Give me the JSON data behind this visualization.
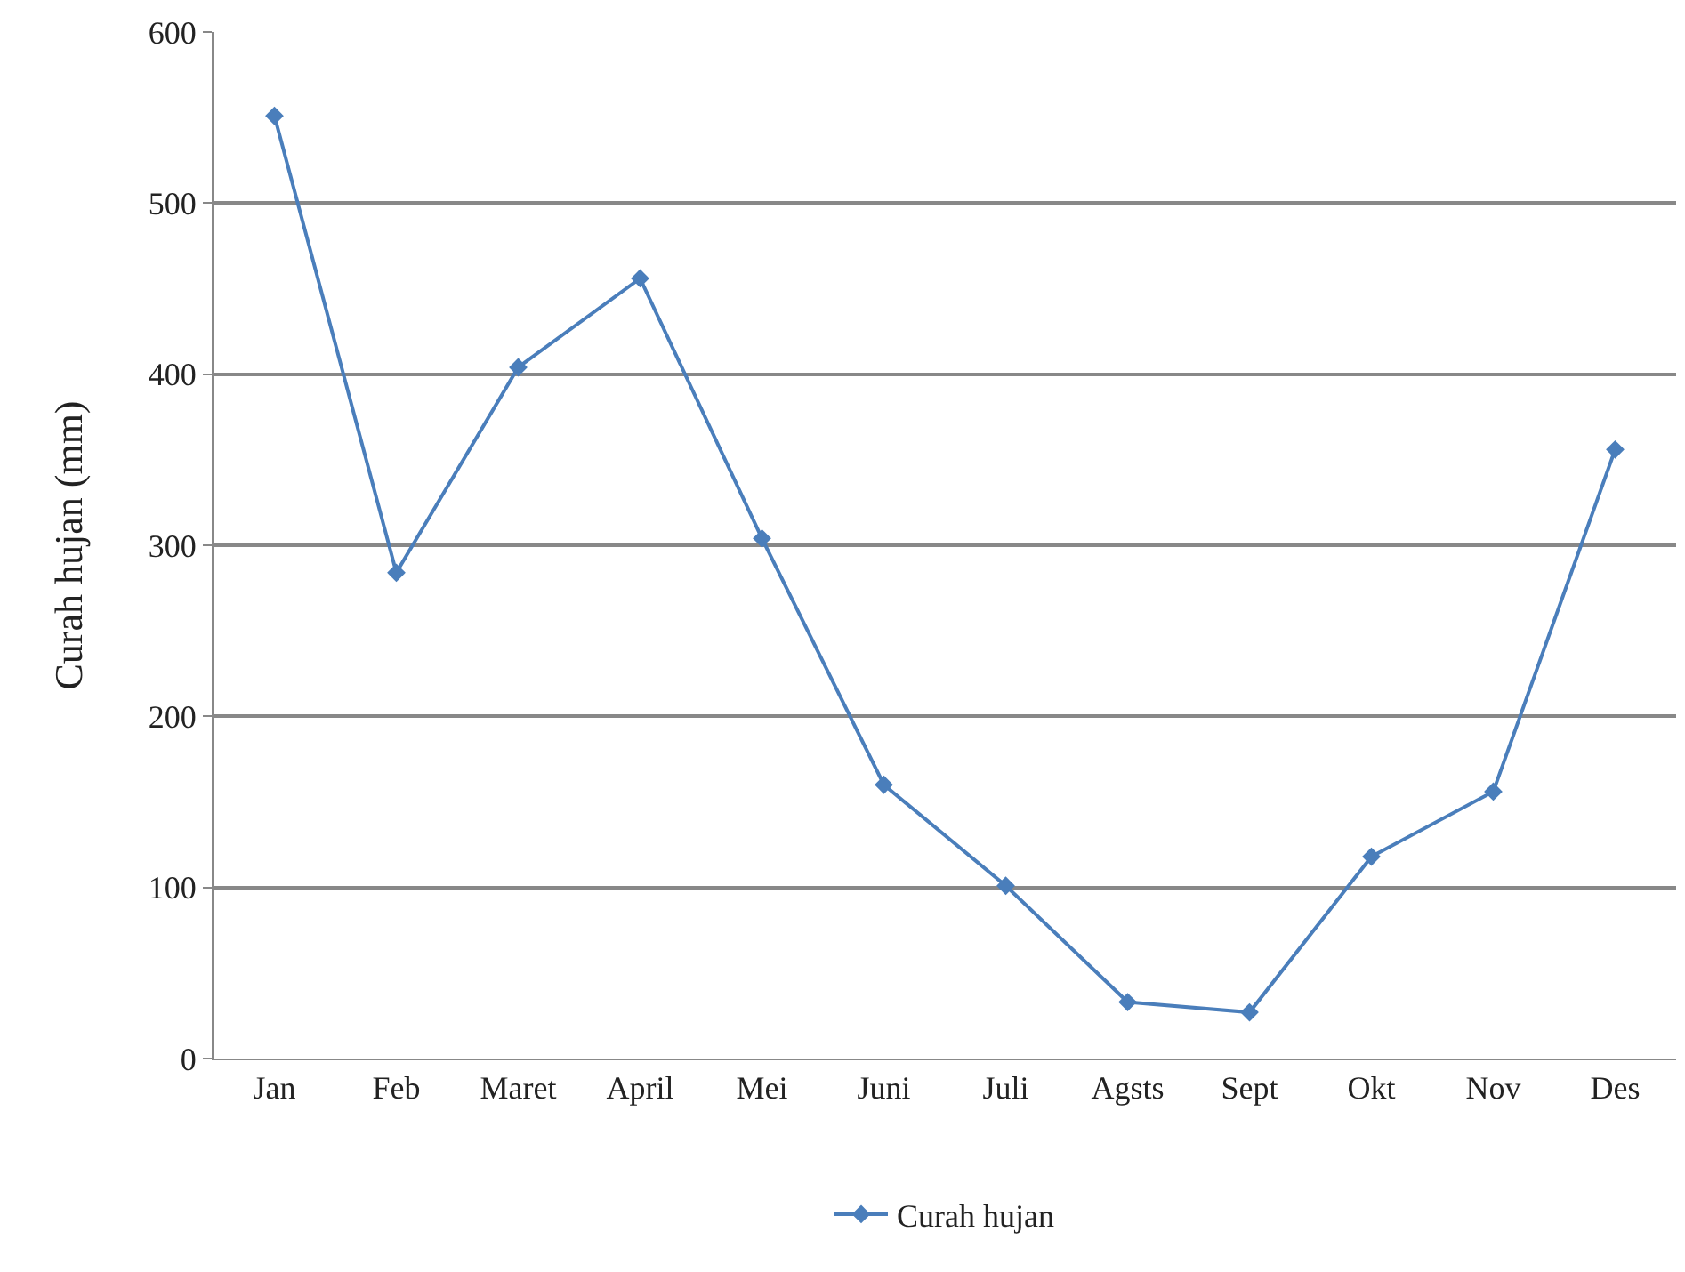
{
  "chart_data": {
    "type": "line",
    "ylabel": "Curah hujan (mm)",
    "categories": [
      "Jan",
      "Feb",
      "Maret",
      "April",
      "Mei",
      "Juni",
      "Juli",
      "Agsts",
      "Sept",
      "Okt",
      "Nov",
      "Des"
    ],
    "series": [
      {
        "name": "Curah hujan",
        "color": "#4a7ebb",
        "values": [
          551,
          284,
          404,
          456,
          304,
          160,
          101,
          33,
          27,
          118,
          156,
          356
        ]
      }
    ],
    "ylim": [
      0,
      600
    ],
    "yticks": [
      0,
      100,
      200,
      300,
      400,
      500,
      600
    ],
    "grid": "y",
    "legend": "bottom",
    "marker": "diamond",
    "line_style": "solid"
  }
}
